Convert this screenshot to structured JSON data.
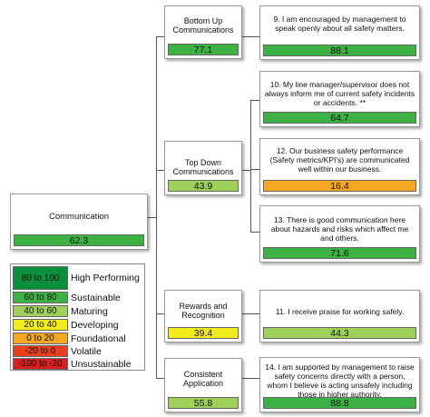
{
  "root": {
    "label": "Communication",
    "score": "62.3"
  },
  "categories": [
    {
      "label": "Bottom Up Communications",
      "score": "77.1"
    },
    {
      "label": "Top Down Communications",
      "score": "43.9"
    },
    {
      "label": "Rewards and Recognition",
      "score": "39.4"
    },
    {
      "label": "Consistent Application",
      "score": "55.8"
    }
  ],
  "questions": [
    {
      "label": "9. I am encouraged by management to speak openly about all safety matters.",
      "score": "88.1"
    },
    {
      "label": "10. My line manager/supervisor does not always inform me of current safety incidents or accidents. **",
      "score": "64.7"
    },
    {
      "label": "12. Our business safety performance (Safety metrics/KPI's) are communicated well within our business.",
      "score": "16.4"
    },
    {
      "label": "13. There is good communication here about hazards and risks which affect me and others.",
      "score": "71.6"
    },
    {
      "label": "11. I receive praise for working safely.",
      "score": "44.3"
    },
    {
      "label": "14. I am supported by management to raise safety concerns directly with a person, whom I believe is acting unsafely including those in higher authority.",
      "score": "88.8"
    }
  ],
  "legend": [
    {
      "range": "80 to 100",
      "label": "High Performing",
      "color": "#0b8f3a"
    },
    {
      "range": "60 to 80",
      "label": "Sustainable",
      "color": "#3db144"
    },
    {
      "range": "40 to 60",
      "label": "Maturing",
      "color": "#9fd05a"
    },
    {
      "range": "20 to 40",
      "label": "Developing",
      "color": "#f2ec1f"
    },
    {
      "range": "0 to 20",
      "label": "Foundational",
      "color": "#f5a623"
    },
    {
      "range": "-20 to 0",
      "label": "Volatile",
      "color": "#e8401c"
    },
    {
      "range": "-100 to -20",
      "label": "Unsustainable",
      "color": "#d81e1e"
    }
  ]
}
